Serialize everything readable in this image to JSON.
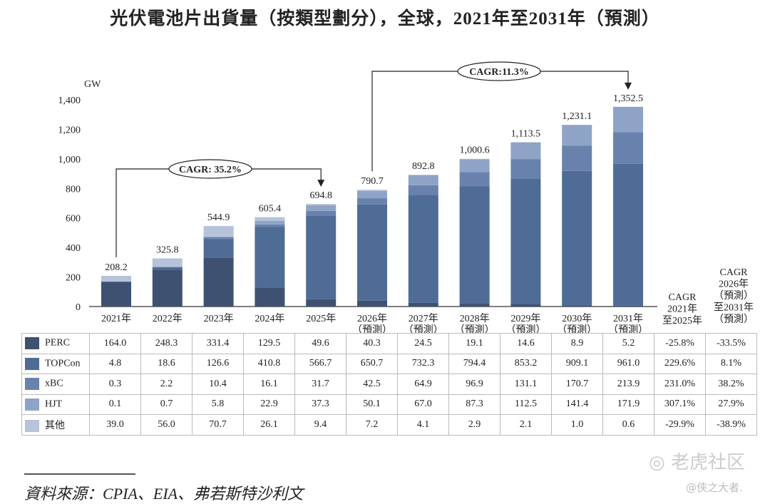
{
  "chart_data": {
    "type": "stacked-bar",
    "title": "光伏電池片出貨量（按類型劃分），全球，2021年至2031年（預測）",
    "ylabel": "GW",
    "ylim": [
      0,
      1400
    ],
    "yticks": [
      "0",
      "200",
      "400",
      "600",
      "800",
      "1,000",
      "1,200",
      "1,400"
    ],
    "categories": [
      [
        "2021年",
        ""
      ],
      [
        "2022年",
        ""
      ],
      [
        "2023年",
        ""
      ],
      [
        "2024年",
        ""
      ],
      [
        "2025年",
        ""
      ],
      [
        "2026年",
        "（預測）"
      ],
      [
        "2027年",
        "（預測）"
      ],
      [
        "2028年",
        "（預測）"
      ],
      [
        "2029年",
        "（預測）"
      ],
      [
        "2030年",
        "（預測）"
      ],
      [
        "2031年",
        "（預測）"
      ]
    ],
    "totals": [
      "208.2",
      "325.8",
      "544.9",
      "605.4",
      "694.8",
      "790.7",
      "892.8",
      "1,000.6",
      "1,113.5",
      "1,231.1",
      "1,352.5"
    ],
    "series": [
      {
        "name": "PERC",
        "color": "#3f5170",
        "values": [
          164.0,
          248.3,
          331.4,
          129.5,
          49.6,
          40.3,
          24.5,
          19.1,
          14.6,
          8.9,
          5.2
        ],
        "labels": [
          "164.0",
          "248.3",
          "331.4",
          "129.5",
          "49.6",
          "40.3",
          "24.5",
          "19.1",
          "14.6",
          "8.9",
          "5.2"
        ],
        "cagr": [
          "-25.8%",
          "-33.5%"
        ]
      },
      {
        "name": "TOPCon",
        "color": "#4f6c96",
        "values": [
          4.8,
          18.6,
          126.6,
          410.8,
          566.7,
          650.7,
          732.3,
          794.4,
          853.2,
          909.1,
          961.0
        ],
        "labels": [
          "4.8",
          "18.6",
          "126.6",
          "410.8",
          "566.7",
          "650.7",
          "732.3",
          "794.4",
          "853.2",
          "909.1",
          "961.0"
        ],
        "cagr": [
          "229.6%",
          "8.1%"
        ]
      },
      {
        "name": "xBC",
        "color": "#6982ad",
        "values": [
          0.3,
          2.2,
          10.4,
          16.1,
          31.7,
          42.5,
          64.9,
          96.9,
          131.1,
          170.7,
          213.9
        ],
        "labels": [
          "0.3",
          "2.2",
          "10.4",
          "16.1",
          "31.7",
          "42.5",
          "64.9",
          "96.9",
          "131.1",
          "170.7",
          "213.9"
        ],
        "cagr": [
          "231.0%",
          "38.2%"
        ]
      },
      {
        "name": "HJT",
        "color": "#8ea3c6",
        "values": [
          0.1,
          0.7,
          5.8,
          22.9,
          37.3,
          50.1,
          67.0,
          87.3,
          112.5,
          141.4,
          171.9
        ],
        "labels": [
          "0.1",
          "0.7",
          "5.8",
          "22.9",
          "37.3",
          "50.1",
          "67.0",
          "87.3",
          "112.5",
          "141.4",
          "171.9"
        ],
        "cagr": [
          "307.1%",
          "27.9%"
        ]
      },
      {
        "name": "其他",
        "color": "#b6c3da",
        "values": [
          39.0,
          56.0,
          70.7,
          26.1,
          9.4,
          7.2,
          4.1,
          2.9,
          2.1,
          1.0,
          0.6
        ],
        "labels": [
          "39.0",
          "56.0",
          "70.7",
          "26.1",
          "9.4",
          "7.2",
          "4.1",
          "2.9",
          "2.1",
          "1.0",
          "0.6"
        ],
        "cagr": [
          "-29.9%",
          "-38.9%"
        ]
      }
    ],
    "cagr_headers": [
      [
        "CAGR",
        "2021年",
        "至2025年"
      ],
      [
        "CAGR",
        "2026年",
        "（預測）",
        "至2031年",
        "（預測）"
      ]
    ],
    "annotations": [
      {
        "text": "CAGR: 35.2%",
        "from": "2021年",
        "to": "2025年"
      },
      {
        "text": "CAGR:11.3%",
        "from": "2026年",
        "to": "2031年"
      }
    ]
  },
  "source": "資料來源：CPIA、EIA、弗若斯特沙利文",
  "watermark": {
    "brand": "老虎社区",
    "user": "@侠之大者."
  }
}
